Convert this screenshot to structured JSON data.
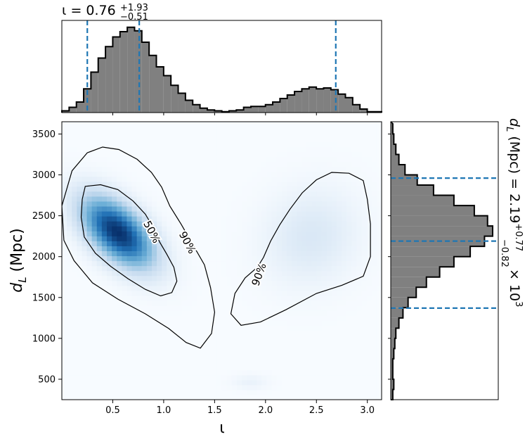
{
  "chart_data": [
    {
      "type": "histogram",
      "panel": "top-marginal",
      "title_symbol": "ι = 0.76",
      "title_sup": "+1.93",
      "title_sub": "−0.51",
      "xlim": [
        0.0,
        3.14
      ],
      "bins_x": [
        0.0,
        0.0714,
        0.1428,
        0.2142,
        0.2856,
        0.357,
        0.4284,
        0.4998,
        0.5712,
        0.6426,
        0.714,
        0.7854,
        0.8568,
        0.9282,
        0.9996,
        1.071,
        1.1424,
        1.2138,
        1.2852,
        1.3566,
        1.428,
        1.4994,
        1.5708,
        1.6422,
        1.7136,
        1.785,
        1.8564,
        1.9278,
        1.9992,
        2.0706,
        2.142,
        2.2134,
        2.2848,
        2.3562,
        2.4276,
        2.499,
        2.5704,
        2.6418,
        2.7132,
        2.7846,
        2.856,
        2.9274,
        2.9988,
        3.0702
      ],
      "counts": [
        0.02,
        0.06,
        0.12,
        0.27,
        0.46,
        0.62,
        0.75,
        0.86,
        0.92,
        0.97,
        0.93,
        0.8,
        0.65,
        0.52,
        0.42,
        0.31,
        0.22,
        0.14,
        0.09,
        0.05,
        0.03,
        0.02,
        0.01,
        0.02,
        0.03,
        0.06,
        0.07,
        0.07,
        0.09,
        0.12,
        0.16,
        0.2,
        0.24,
        0.27,
        0.29,
        0.27,
        0.28,
        0.26,
        0.21,
        0.17,
        0.09,
        0.04,
        0.01,
        0.01
      ],
      "quantile_lines": [
        0.25,
        0.76,
        2.69
      ]
    },
    {
      "type": "heatmap",
      "panel": "joint",
      "xlabel": "ι",
      "ylabel_main": "d",
      "ylabel_sub": "L",
      "ylabel_unit": " (Mpc)",
      "xlim": [
        0.0,
        3.14
      ],
      "ylim": [
        250,
        3650
      ],
      "x_ticks": [
        "0.5",
        "1.0",
        "1.5",
        "2.0",
        "2.5",
        "3.0"
      ],
      "x_tick_values": [
        0.5,
        1.0,
        1.5,
        2.0,
        2.5,
        3.0
      ],
      "y_ticks": [
        "500",
        "1000",
        "1500",
        "2000",
        "2500",
        "3000",
        "3500"
      ],
      "y_tick_values": [
        500,
        1000,
        1500,
        2000,
        2500,
        3000,
        3500
      ],
      "colormap": [
        "#f7fbff",
        "#c6dbef",
        "#6baed6",
        "#2171b5",
        "#08306b"
      ],
      "blobs": [
        {
          "center": [
            0.55,
            2300
          ],
          "sigma": [
            0.23,
            280
          ],
          "rho": -0.55,
          "weight": 1.0
        },
        {
          "center": [
            2.45,
            2250
          ],
          "sigma": [
            0.3,
            380
          ],
          "rho": 0.1,
          "weight": 0.12
        },
        {
          "center": [
            1.85,
            470
          ],
          "sigma": [
            0.12,
            60
          ],
          "rho": 0.0,
          "weight": 0.05
        }
      ],
      "contours": [
        {
          "label": "50%",
          "label_pos": [
            0.88,
            2300
          ],
          "label_rot": 62,
          "points": [
            [
              0.23,
              2860
            ],
            [
              0.38,
              2880
            ],
            [
              0.55,
              2820
            ],
            [
              0.7,
              2680
            ],
            [
              0.82,
              2520
            ],
            [
              0.9,
              2350
            ],
            [
              0.96,
              2180
            ],
            [
              1.03,
              2030
            ],
            [
              1.1,
              1870
            ],
            [
              1.13,
              1700
            ],
            [
              1.08,
              1560
            ],
            [
              0.97,
              1520
            ],
            [
              0.82,
              1600
            ],
            [
              0.65,
              1730
            ],
            [
              0.48,
              1880
            ],
            [
              0.33,
              2040
            ],
            [
              0.22,
              2240
            ],
            [
              0.19,
              2480
            ],
            [
              0.2,
              2700
            ]
          ]
        },
        {
          "label": "90%",
          "label_pos": [
            1.23,
            2170
          ],
          "label_rot": 62,
          "points": [
            [
              0.0,
              2620
            ],
            [
              0.1,
              3050
            ],
            [
              0.25,
              3270
            ],
            [
              0.4,
              3340
            ],
            [
              0.56,
              3310
            ],
            [
              0.74,
              3190
            ],
            [
              0.88,
              3030
            ],
            [
              0.98,
              2850
            ],
            [
              1.06,
              2620
            ],
            [
              1.17,
              2400
            ],
            [
              1.28,
              2160
            ],
            [
              1.4,
              1900
            ],
            [
              1.46,
              1620
            ],
            [
              1.5,
              1320
            ],
            [
              1.47,
              1060
            ],
            [
              1.36,
              880
            ],
            [
              1.22,
              950
            ],
            [
              1.05,
              1120
            ],
            [
              0.82,
              1300
            ],
            [
              0.55,
              1480
            ],
            [
              0.3,
              1680
            ],
            [
              0.12,
              1950
            ],
            [
              0.02,
              2200
            ]
          ]
        },
        {
          "label": "90%",
          "label_pos": [
            1.94,
            1780
          ],
          "label_rot": -70,
          "points": [
            [
              1.98,
              1990
            ],
            [
              2.05,
              2190
            ],
            [
              2.14,
              2390
            ],
            [
              2.24,
              2580
            ],
            [
              2.36,
              2780
            ],
            [
              2.5,
              2940
            ],
            [
              2.65,
              3030
            ],
            [
              2.82,
              3020
            ],
            [
              2.96,
              2930
            ],
            [
              3.0,
              2700
            ],
            [
              3.03,
              2400
            ],
            [
              3.03,
              2000
            ],
            [
              2.96,
              1760
            ],
            [
              2.75,
              1650
            ],
            [
              2.5,
              1550
            ],
            [
              2.2,
              1350
            ],
            [
              1.95,
              1200
            ],
            [
              1.76,
              1160
            ],
            [
              1.66,
              1300
            ],
            [
              1.7,
              1550
            ],
            [
              1.8,
              1740
            ],
            [
              1.92,
              1870
            ]
          ]
        }
      ]
    },
    {
      "type": "histogram",
      "panel": "right-marginal",
      "orientation": "horizontal",
      "label_main": "d",
      "label_sub": "L",
      "label_unit": " (Mpc) = 2.19",
      "label_sup": "+0.77",
      "label_subtail": "−0.82",
      "label_mult": " × 10",
      "label_exp": "3",
      "ylim": [
        250,
        3650
      ],
      "bins_y": [
        250,
        375,
        500,
        625,
        750,
        875,
        1000,
        1125,
        1250,
        1375,
        1500,
        1625,
        1750,
        1875,
        2000,
        2125,
        2250,
        2375,
        2500,
        2625,
        2750,
        2875,
        3000,
        3125,
        3250,
        3375,
        3500
      ],
      "counts": [
        0.02,
        0.03,
        0.02,
        0.02,
        0.03,
        0.04,
        0.05,
        0.08,
        0.12,
        0.17,
        0.25,
        0.35,
        0.48,
        0.62,
        0.78,
        0.92,
        1.0,
        0.95,
        0.82,
        0.62,
        0.42,
        0.26,
        0.14,
        0.08,
        0.05,
        0.03,
        0.02
      ],
      "quantile_lines": [
        1370,
        2190,
        2960
      ]
    }
  ],
  "colors": {
    "hist_fill": "#808080",
    "quantile_line": "#1f77b4",
    "contour": "#000000"
  }
}
